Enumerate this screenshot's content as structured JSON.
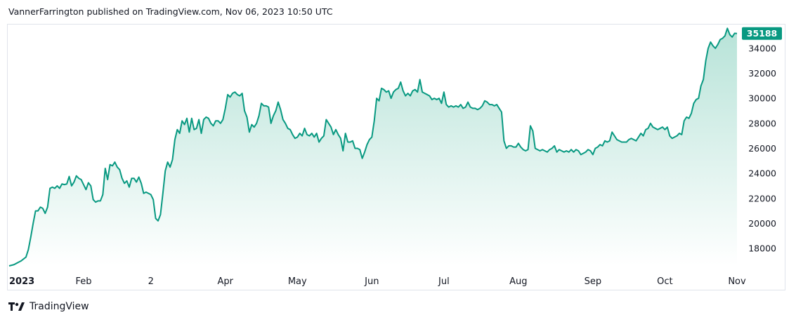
{
  "header": {
    "text": "VannerFarrington published on TradingView.com, Nov 06, 2023 10:50 UTC"
  },
  "footer": {
    "brand": "TradingView",
    "logo_icon": "tradingview-logo-icon"
  },
  "colors": {
    "line": "#089981",
    "area_top": "#b7e3d8",
    "area_bottom": "#ffffff",
    "price_tag": "#089981",
    "axis_text": "#131722"
  },
  "chart_data": {
    "type": "area",
    "title": "",
    "xlabel": "",
    "ylabel": "",
    "ylim": [
      16600,
      35900
    ],
    "grid": false,
    "last_value": "35188",
    "x_tick_labels": [
      {
        "label": "2023",
        "day": 0,
        "bold": true
      },
      {
        "label": "Feb",
        "day": 31
      },
      {
        "label": "2",
        "day": 59
      },
      {
        "label": "Apr",
        "day": 90
      },
      {
        "label": "May",
        "day": 120
      },
      {
        "label": "Jun",
        "day": 151
      },
      {
        "label": "Jul",
        "day": 181
      },
      {
        "label": "Aug",
        "day": 212
      },
      {
        "label": "Sep",
        "day": 243
      },
      {
        "label": "Oct",
        "day": 273
      },
      {
        "label": "Nov",
        "day": 304
      }
    ],
    "y_tick_labels": [
      "18000",
      "20000",
      "22000",
      "24000",
      "26000",
      "28000",
      "30000",
      "32000",
      "34000"
    ],
    "series": [
      {
        "x_start": "2023-01-01",
        "values": [
          16600,
          16650,
          16700,
          16800,
          16900,
          17000,
          17150,
          17300,
          17900,
          18900,
          20000,
          21000,
          21000,
          21300,
          21200,
          20800,
          21300,
          22800,
          22900,
          22800,
          23000,
          22800,
          23150,
          23100,
          23150,
          23750,
          23000,
          23300,
          23800,
          23600,
          23500,
          23100,
          22700,
          23250,
          23000,
          21900,
          21700,
          21800,
          21800,
          22300,
          24400,
          23500,
          24700,
          24600,
          24900,
          24500,
          24300,
          23600,
          23200,
          23400,
          22900,
          23600,
          23600,
          23300,
          23700,
          23200,
          22400,
          22500,
          22400,
          22300,
          21900,
          20400,
          20200,
          20700,
          22400,
          24200,
          24900,
          24500,
          25100,
          26700,
          27500,
          27200,
          28200,
          27900,
          28400,
          27300,
          28400,
          27500,
          27600,
          28300,
          27200,
          28300,
          28500,
          28400,
          28000,
          27800,
          28200,
          28200,
          28000,
          28300,
          29200,
          30300,
          30100,
          30400,
          30500,
          30300,
          30200,
          30400,
          29000,
          28500,
          27300,
          27900,
          27700,
          28000,
          28600,
          29600,
          29400,
          29400,
          29300,
          28000,
          28600,
          29000,
          29700,
          29100,
          28300,
          28000,
          27600,
          27500,
          27100,
          26800,
          26900,
          27200,
          27000,
          27600,
          27100,
          27000,
          27200,
          26900,
          27200,
          26500,
          26800,
          27000,
          28300,
          28000,
          27700,
          27100,
          27500,
          27100,
          26800,
          25800,
          27200,
          26500,
          26500,
          26600,
          26000,
          26000,
          25900,
          25200,
          25700,
          26300,
          26700,
          26900,
          28200,
          30000,
          29800,
          30800,
          30700,
          30500,
          30600,
          30000,
          30500,
          30700,
          30800,
          31300,
          30600,
          30200,
          30400,
          30200,
          30600,
          30700,
          30500,
          31500,
          30500,
          30400,
          30300,
          30200,
          29900,
          30000,
          29900,
          30000,
          29600,
          30500,
          29500,
          29300,
          29400,
          29300,
          29400,
          29300,
          29500,
          29200,
          29300,
          29700,
          29300,
          29200,
          29200,
          29100,
          29200,
          29400,
          29800,
          29700,
          29500,
          29500,
          29400,
          29500,
          29200,
          28900,
          26600,
          26000,
          26200,
          26200,
          26100,
          26100,
          26400,
          26100,
          25900,
          25800,
          25900,
          27800,
          27400,
          26000,
          25900,
          25800,
          25900,
          25800,
          25700,
          25900,
          26000,
          26200,
          25700,
          25900,
          25800,
          25700,
          25800,
          25700,
          25900,
          25700,
          25900,
          25800,
          25500,
          25600,
          25700,
          25900,
          25800,
          25500,
          26000,
          26100,
          26300,
          26200,
          26600,
          26500,
          26600,
          27300,
          27000,
          26700,
          26600,
          26500,
          26500,
          26500,
          26700,
          26800,
          26700,
          26600,
          26900,
          27200,
          27000,
          27500,
          27600,
          28000,
          27700,
          27600,
          27500,
          27600,
          27700,
          27500,
          27700,
          27000,
          26800,
          26900,
          27000,
          27200,
          27100,
          28200,
          28500,
          28400,
          28800,
          29600,
          29900,
          30000,
          31000,
          31500,
          33000,
          34000,
          34500,
          34200,
          34000,
          34300,
          34700,
          34800,
          35000,
          35600,
          35100,
          34900,
          35200,
          35188
        ]
      }
    ]
  }
}
